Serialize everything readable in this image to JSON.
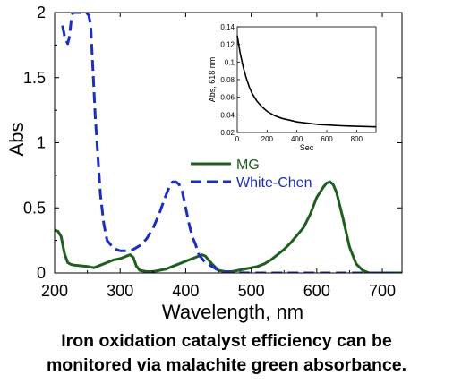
{
  "chart_data": [
    {
      "type": "line",
      "xlabel": "Wavelength, nm",
      "ylabel": "Abs",
      "xlim": [
        200,
        730
      ],
      "ylim": [
        0,
        2
      ],
      "xticks": [
        200,
        300,
        400,
        500,
        600,
        700
      ],
      "yticks": [
        0,
        0.5,
        1,
        1.5,
        2
      ],
      "xtick_labels": [
        "200",
        "300",
        "400",
        "500",
        "600",
        "700"
      ],
      "ytick_labels": [
        "0",
        "0.5",
        "1",
        "1.5",
        "2"
      ],
      "grid": false,
      "legend_position": "center-right",
      "series": [
        {
          "name": "MG",
          "color": "#1f5e1f",
          "style": "solid",
          "x": [
            200,
            205,
            210,
            215,
            220,
            225,
            230,
            240,
            250,
            260,
            270,
            280,
            290,
            300,
            310,
            315,
            320,
            325,
            330,
            340,
            350,
            360,
            370,
            380,
            390,
            400,
            410,
            420,
            425,
            430,
            435,
            440,
            450,
            460,
            470,
            480,
            490,
            500,
            510,
            520,
            530,
            540,
            550,
            560,
            570,
            580,
            590,
            600,
            610,
            615,
            620,
            625,
            630,
            640,
            650,
            660,
            670,
            680,
            700,
            730
          ],
          "y": [
            0.33,
            0.32,
            0.28,
            0.15,
            0.08,
            0.065,
            0.06,
            0.055,
            0.05,
            0.04,
            0.06,
            0.08,
            0.1,
            0.11,
            0.13,
            0.14,
            0.12,
            0.05,
            0.02,
            0.01,
            0.01,
            0.02,
            0.03,
            0.05,
            0.07,
            0.09,
            0.11,
            0.13,
            0.14,
            0.13,
            0.1,
            0.07,
            0.02,
            0.01,
            0.01,
            0.02,
            0.03,
            0.04,
            0.05,
            0.07,
            0.1,
            0.14,
            0.18,
            0.23,
            0.29,
            0.35,
            0.45,
            0.58,
            0.66,
            0.69,
            0.7,
            0.68,
            0.62,
            0.42,
            0.2,
            0.07,
            0.02,
            0.0,
            0.0,
            0.0
          ]
        },
        {
          "name": "White-Chen",
          "color": "#1a2fbf",
          "style": "dashed",
          "x": [
            212,
            214,
            216,
            218,
            220,
            222,
            224,
            226,
            228,
            230,
            240,
            248,
            252,
            255,
            258,
            262,
            266,
            270,
            275,
            280,
            290,
            300,
            310,
            320,
            330,
            340,
            350,
            360,
            365,
            370,
            375,
            380,
            385,
            390,
            395,
            400,
            405,
            410,
            415,
            420,
            430,
            440,
            450,
            460,
            480,
            500,
            550,
            600,
            650,
            700,
            730
          ],
          "y": [
            1.9,
            1.85,
            1.8,
            1.78,
            1.76,
            1.8,
            1.88,
            1.97,
            2.0,
            2.0,
            2.0,
            2.0,
            1.98,
            1.9,
            1.6,
            1.2,
            0.9,
            0.6,
            0.38,
            0.25,
            0.19,
            0.17,
            0.17,
            0.18,
            0.21,
            0.26,
            0.34,
            0.46,
            0.53,
            0.6,
            0.66,
            0.7,
            0.7,
            0.68,
            0.62,
            0.5,
            0.38,
            0.28,
            0.22,
            0.14,
            0.08,
            0.05,
            0.02,
            0.005,
            0.002,
            0.0,
            0.0,
            0.0,
            0.0,
            0.0,
            0.0
          ]
        }
      ]
    },
    {
      "type": "line",
      "xlabel": "Sec",
      "ylabel": "Abs, 618 nm",
      "xlim": [
        0,
        930
      ],
      "ylim": [
        0.02,
        0.14
      ],
      "xticks": [
        0,
        200,
        400,
        600,
        800
      ],
      "yticks": [
        0.02,
        0.04,
        0.06,
        0.08,
        0.1,
        0.12,
        0.14
      ],
      "xtick_labels": [
        "0",
        "200",
        "400",
        "600",
        "800"
      ],
      "ytick_labels": [
        "0.02",
        "0.04",
        "0.06",
        "0.08",
        "0.1",
        "0.12",
        "0.14"
      ],
      "grid": false,
      "series": [
        {
          "color": "#000000",
          "style": "solid",
          "x": [
            0,
            20,
            40,
            60,
            80,
            100,
            130,
            160,
            200,
            250,
            300,
            350,
            400,
            450,
            500,
            550,
            600,
            650,
            700,
            750,
            800,
            850,
            900,
            930
          ],
          "y": [
            0.13,
            0.11,
            0.094,
            0.082,
            0.072,
            0.064,
            0.056,
            0.05,
            0.044,
            0.039,
            0.036,
            0.034,
            0.032,
            0.031,
            0.03,
            0.029,
            0.0285,
            0.028,
            0.0276,
            0.0273,
            0.027,
            0.0268,
            0.0265,
            0.0264
          ]
        }
      ]
    }
  ],
  "caption": {
    "line1": "Iron oxidation catalyst efficiency can be",
    "line2": "monitored via malachite green absorbance."
  }
}
